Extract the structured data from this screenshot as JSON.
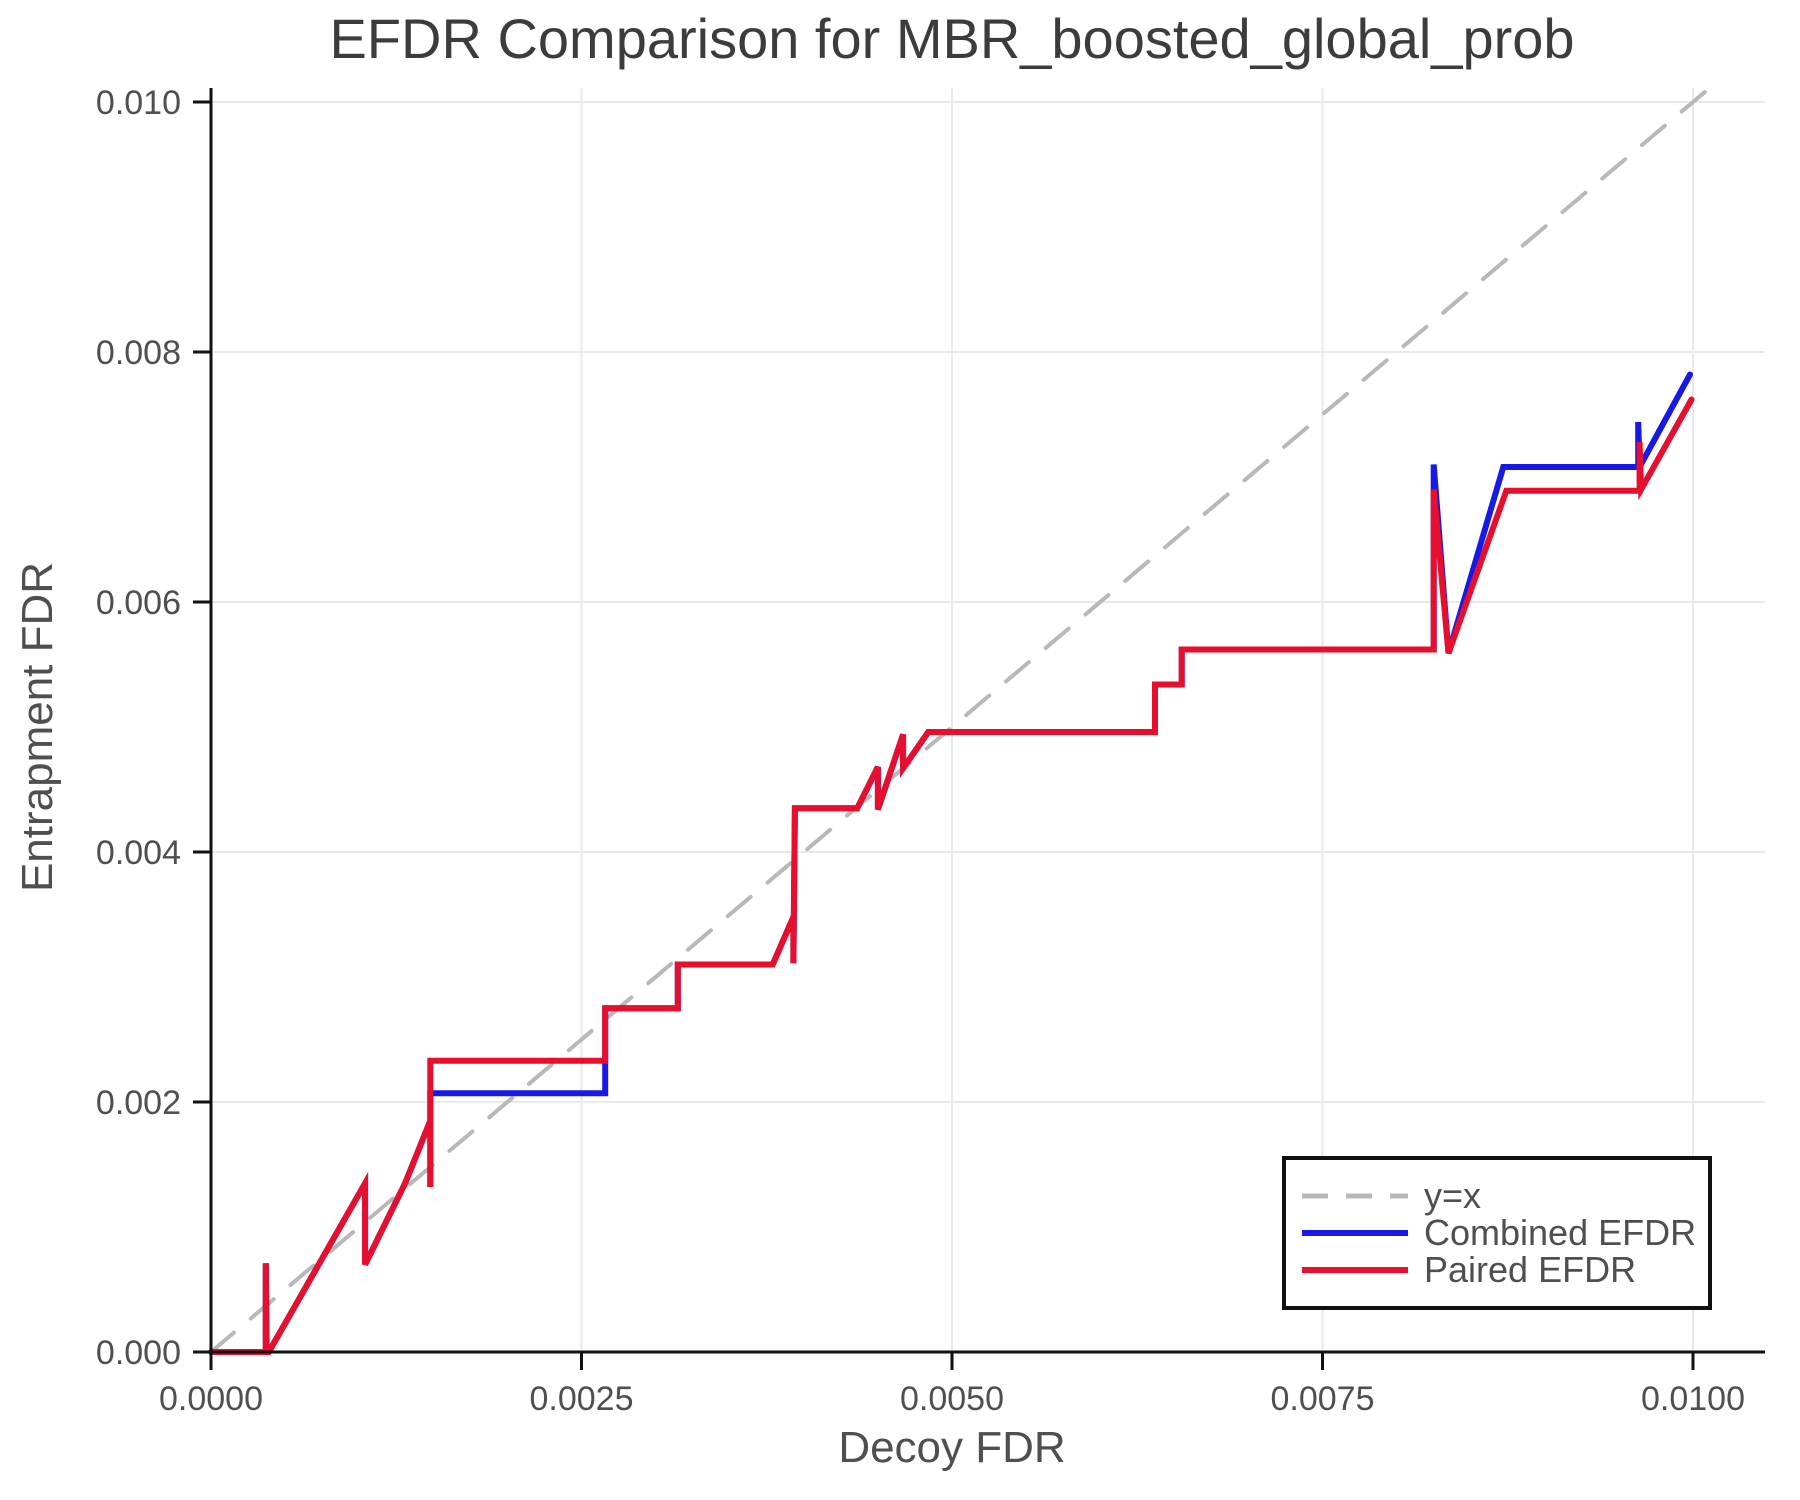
{
  "figure": {
    "background": "#ffffff",
    "spine_color": "#111111",
    "grid_color": "#e9e9e9",
    "tick_label_color": "#4f4f4f",
    "title_color": "#3c3c3c"
  },
  "chart_data": {
    "type": "line",
    "title": "EFDR Comparison for MBR_boosted_global_prob",
    "xlabel": "Decoy FDR",
    "ylabel": "Entrapment FDR",
    "xlim": [
      0.0,
      0.01
    ],
    "ylim": [
      0.0,
      0.01
    ],
    "grid": true,
    "xticks": {
      "values": [
        0.0,
        0.0025,
        0.005,
        0.0075,
        0.01
      ],
      "labels": [
        "0.0000",
        "0.0025",
        "0.0050",
        "0.0075",
        "0.0100"
      ]
    },
    "yticks": {
      "values": [
        0.0,
        0.002,
        0.004,
        0.006,
        0.008,
        0.01
      ],
      "labels": [
        "0.000",
        "0.002",
        "0.004",
        "0.006",
        "0.008",
        "0.010"
      ]
    },
    "legend": {
      "position": "lower right",
      "entries": [
        {
          "label": "y=x",
          "color": "#b8b8b8",
          "dash": true
        },
        {
          "label": "Combined EFDR",
          "color": "#1919e6",
          "dash": false
        },
        {
          "label": "Paired EFDR",
          "color": "#e60f2d",
          "dash": false
        }
      ]
    },
    "series": [
      {
        "name": "y=x",
        "style": "dashed",
        "color": "#b8b8b8",
        "width": 4,
        "points": [
          [
            0.0,
            0.0
          ],
          [
            0.0101,
            0.0101
          ]
        ]
      },
      {
        "name": "Combined EFDR",
        "style": "solid",
        "color": "#1919e6",
        "width": 6,
        "points": [
          [
            0.0,
            0.0
          ],
          [
            0.00037,
            0.0
          ],
          [
            0.00037,
            0.00071
          ],
          [
            0.000376,
            0.0
          ],
          [
            0.00039,
            0.0
          ],
          [
            0.00104,
            0.00135
          ],
          [
            0.00104,
            0.0007
          ],
          [
            0.00131,
            0.00135
          ],
          [
            0.00148,
            0.00185
          ],
          [
            0.00148,
            0.00132
          ],
          [
            0.00148,
            0.00207
          ],
          [
            0.00266,
            0.00207
          ],
          [
            0.00266,
            0.00275
          ],
          [
            0.00315,
            0.00275
          ],
          [
            0.00315,
            0.0031
          ],
          [
            0.00379,
            0.0031
          ],
          [
            0.00393,
            0.00348
          ],
          [
            0.00393,
            0.00311
          ],
          [
            0.00394,
            0.00435
          ],
          [
            0.00436,
            0.00435
          ],
          [
            0.0045,
            0.00468
          ],
          [
            0.0045,
            0.00434
          ],
          [
            0.00467,
            0.00494
          ],
          [
            0.00467,
            0.00467
          ],
          [
            0.00484,
            0.00496
          ],
          [
            0.00637,
            0.00496
          ],
          [
            0.00637,
            0.00534
          ],
          [
            0.00655,
            0.00534
          ],
          [
            0.00655,
            0.00562
          ],
          [
            0.00825,
            0.00562
          ],
          [
            0.00825,
            0.0071
          ],
          [
            0.00835,
            0.00559
          ],
          [
            0.00872,
            0.00708
          ],
          [
            0.00963,
            0.00708
          ],
          [
            0.00963,
            0.00744
          ],
          [
            0.00964,
            0.00708
          ],
          [
            0.00998,
            0.00782
          ]
        ]
      },
      {
        "name": "Paired EFDR",
        "style": "solid",
        "color": "#e60f2d",
        "width": 6,
        "points": [
          [
            0.0,
            0.0
          ],
          [
            0.00037,
            0.0
          ],
          [
            0.00037,
            0.00071
          ],
          [
            0.000376,
            0.0
          ],
          [
            0.00039,
            0.0
          ],
          [
            0.00104,
            0.00135
          ],
          [
            0.00104,
            0.0007
          ],
          [
            0.00131,
            0.00135
          ],
          [
            0.00148,
            0.00185
          ],
          [
            0.00148,
            0.00132
          ],
          [
            0.00148,
            0.00233
          ],
          [
            0.00266,
            0.00233
          ],
          [
            0.00266,
            0.00275
          ],
          [
            0.00315,
            0.00275
          ],
          [
            0.00315,
            0.0031
          ],
          [
            0.00379,
            0.0031
          ],
          [
            0.00393,
            0.00348
          ],
          [
            0.00393,
            0.00311
          ],
          [
            0.00394,
            0.00435
          ],
          [
            0.00436,
            0.00435
          ],
          [
            0.0045,
            0.00468
          ],
          [
            0.0045,
            0.00434
          ],
          [
            0.00467,
            0.00494
          ],
          [
            0.00467,
            0.00467
          ],
          [
            0.00484,
            0.00496
          ],
          [
            0.00637,
            0.00496
          ],
          [
            0.00637,
            0.00534
          ],
          [
            0.00655,
            0.00534
          ],
          [
            0.00655,
            0.00562
          ],
          [
            0.00825,
            0.00562
          ],
          [
            0.00825,
            0.0069
          ],
          [
            0.00835,
            0.00559
          ],
          [
            0.00874,
            0.00689
          ],
          [
            0.00964,
            0.00689
          ],
          [
            0.00964,
            0.00728
          ],
          [
            0.00965,
            0.0069
          ],
          [
            0.00999,
            0.00762
          ]
        ]
      }
    ]
  }
}
